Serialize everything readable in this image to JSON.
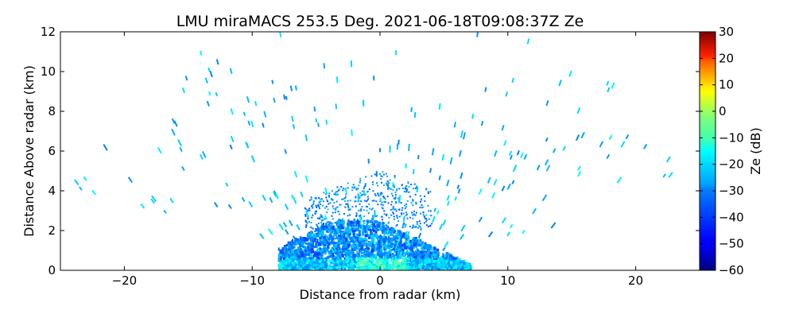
{
  "chart_data": {
    "type": "heatmap",
    "title": "LMU miraMACS 253.5 Deg. 2021-06-18T09:08:37Z  Ze",
    "xlabel": "Distance from radar (km)",
    "ylabel": "Distance Above radar  (km)",
    "xlim": [
      -25,
      25
    ],
    "ylim": [
      0,
      12
    ],
    "x_ticks": [
      -20,
      -10,
      0,
      10,
      20
    ],
    "x_tick_labels": [
      "−20",
      "−10",
      "0",
      "10",
      "20"
    ],
    "y_ticks": [
      0,
      2,
      4,
      6,
      8,
      10,
      12
    ],
    "y_tick_labels": [
      "0",
      "2",
      "4",
      "6",
      "8",
      "10",
      "12"
    ],
    "colorbar": {
      "label": "Ze (dB)",
      "range": [
        -60,
        30
      ],
      "ticks": [
        30,
        20,
        10,
        0,
        -10,
        -20,
        -30,
        -40,
        -50,
        -60
      ],
      "tick_labels": [
        "30",
        "20",
        "10",
        "0",
        "−10",
        "−20",
        "−30",
        "−40",
        "−50",
        "−60"
      ],
      "colormap": "jet"
    },
    "description_summary": {
      "dense_echo_region_x_km": [
        -8,
        7
      ],
      "dense_echo_region_y_km": [
        0,
        2.5
      ],
      "typical_ze_db_range": [
        -45,
        -20
      ],
      "sparse_clutter_max_height_km": 12
    }
  },
  "colors": {
    "axis": "#000000",
    "background": "#ffffff"
  }
}
